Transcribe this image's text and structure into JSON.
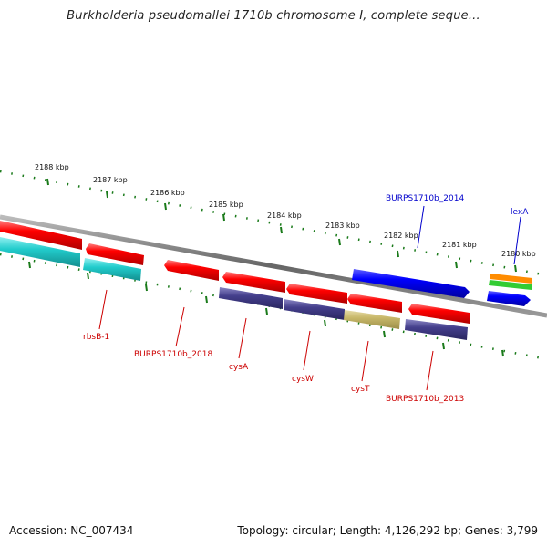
{
  "title": "Burkholderia pseudomallei 1710b chromosome I, complete seque...",
  "footer": {
    "accession": "Accession: NC_007434",
    "topology": "Topology: circular; Length: 4,126,292 bp; Genes: 3,799"
  },
  "kbp_labels": [
    "2188 kbp",
    "2187 kbp",
    "2186 kbp",
    "2185 kbp",
    "2184 kbp",
    "2183 kbp",
    "2182 kbp",
    "2181 kbp",
    "2180 kbp"
  ],
  "gene_labels": {
    "rbsB": "rbsB-1",
    "g2018": "BURPS1710b_2018",
    "cysA": "cysA",
    "cysW": "cysW",
    "cysT": "cysT",
    "g2013": "BURPS1710b_2013",
    "g2014": "BURPS1710b_2014",
    "lexA": "lexA"
  },
  "colors": {
    "cds_reverse": "#ff0000",
    "cds_forward": "#0000ff",
    "cog_cyan": "#22cccc",
    "cog_purple": "#443f8c",
    "cog_khaki": "#c8b86a",
    "cog_orange": "#ff8c00",
    "cog_green": "#33cc33",
    "backbone": "#777777",
    "ticks": "#1a7a1a",
    "label_reverse": "#cc0000",
    "label_forward": "#0000cc"
  }
}
